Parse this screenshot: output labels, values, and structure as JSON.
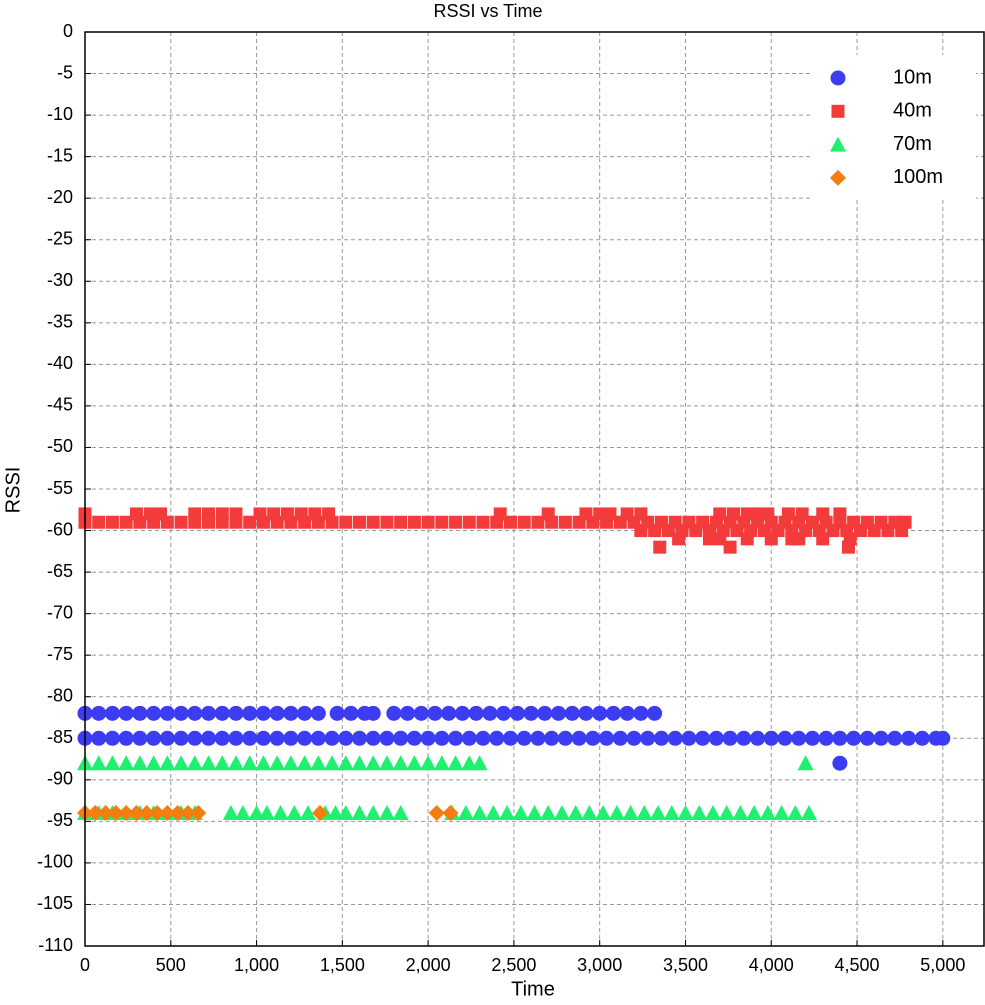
{
  "chart_data": {
    "type": "scatter",
    "title": "RSSI vs Time",
    "x_label": "Time",
    "y_label": "RSSI",
    "xlim": [
      0,
      5240
    ],
    "ylim": [
      -110,
      0
    ],
    "grid": true,
    "legend": "top-right",
    "xticks": [
      0,
      500,
      {
        "value": 1000,
        "label": "1,000"
      },
      {
        "value": 1500,
        "label": "1,500"
      },
      {
        "value": 2000,
        "label": "2,000"
      },
      {
        "value": 2500,
        "label": "2,500"
      },
      {
        "value": 3000,
        "label": "3,000"
      },
      {
        "value": 3500,
        "label": "3,500"
      },
      {
        "value": 4000,
        "label": "4,000"
      },
      {
        "value": 4500,
        "label": "4,500"
      },
      {
        "value": 5000,
        "label": "5,000"
      }
    ],
    "yticks": [
      0,
      -5,
      -10,
      -15,
      -20,
      -25,
      -30,
      -35,
      -40,
      -45,
      -50,
      -55,
      -60,
      -65,
      -70,
      -75,
      -80,
      -85,
      -90,
      -95,
      -100,
      -105,
      -110
    ],
    "series": [
      {
        "name": "10m",
        "color": "#3c3cf2",
        "marker": "circle",
        "x": [
          0,
          80,
          160,
          240,
          320,
          400,
          480,
          560,
          640,
          720,
          800,
          880,
          960,
          1040,
          1120,
          1200,
          1280,
          1360,
          1470,
          1550,
          1630,
          1680,
          1800,
          1880,
          1960,
          2040,
          2120,
          2200,
          2280,
          2360,
          2440,
          2520,
          2600,
          2680,
          2760,
          2840,
          2920,
          3000,
          3080,
          3160,
          3240,
          3320,
          0,
          80,
          160,
          240,
          320,
          400,
          480,
          560,
          640,
          720,
          800,
          880,
          960,
          1040,
          1120,
          1200,
          1280,
          1360,
          1440,
          1520,
          1600,
          1680,
          1760,
          1840,
          1920,
          2000,
          2080,
          2160,
          2240,
          2320,
          2400,
          2480,
          2560,
          2640,
          2720,
          2800,
          2880,
          2960,
          3040,
          3120,
          3200,
          3280,
          3360,
          3440,
          3520,
          3600,
          3680,
          3760,
          3840,
          3920,
          4000,
          4080,
          4160,
          4240,
          4320,
          4400,
          4480,
          4560,
          4640,
          4720,
          4800,
          4880,
          4960,
          5000,
          4400
        ],
        "values": [
          -82,
          -82,
          -82,
          -82,
          -82,
          -82,
          -82,
          -82,
          -82,
          -82,
          -82,
          -82,
          -82,
          -82,
          -82,
          -82,
          -82,
          -82,
          -82,
          -82,
          -82,
          -82,
          -82,
          -82,
          -82,
          -82,
          -82,
          -82,
          -82,
          -82,
          -82,
          -82,
          -82,
          -82,
          -82,
          -82,
          -82,
          -82,
          -82,
          -82,
          -82,
          -82,
          -85,
          -85,
          -85,
          -85,
          -85,
          -85,
          -85,
          -85,
          -85,
          -85,
          -85,
          -85,
          -85,
          -85,
          -85,
          -85,
          -85,
          -85,
          -85,
          -85,
          -85,
          -85,
          -85,
          -85,
          -85,
          -85,
          -85,
          -85,
          -85,
          -85,
          -85,
          -85,
          -85,
          -85,
          -85,
          -85,
          -85,
          -85,
          -85,
          -85,
          -85,
          -85,
          -85,
          -85,
          -85,
          -85,
          -85,
          -85,
          -85,
          -85,
          -85,
          -85,
          -85,
          -85,
          -85,
          -85,
          -85,
          -85,
          -85,
          -85,
          -85,
          -85,
          -85,
          -85,
          -88
        ]
      },
      {
        "name": "40m",
        "color": "#f33b3b",
        "marker": "square",
        "x": [
          0,
          80,
          160,
          240,
          320,
          400,
          480,
          560,
          640,
          720,
          800,
          880,
          960,
          1040,
          1120,
          1200,
          1280,
          1360,
          1440,
          1520,
          1600,
          1680,
          1760,
          1840,
          1920,
          2000,
          2080,
          2160,
          2240,
          2320,
          2400,
          2480,
          2560,
          2640,
          2720,
          2800,
          2880,
          2960,
          3040,
          3120,
          3200,
          3280,
          3360,
          3440,
          3520,
          3600,
          3680,
          3760,
          3840,
          3920,
          4000,
          4080,
          4160,
          4240,
          4320,
          4400,
          4480,
          4560,
          4640,
          4720,
          4780,
          0,
          300,
          380,
          440,
          640,
          720,
          800,
          880,
          1020,
          1100,
          1180,
          1260,
          1340,
          1420,
          2420,
          2700,
          2920,
          3000,
          3060,
          3160,
          3240,
          3700,
          3780,
          3860,
          3920,
          3980,
          4100,
          4180,
          4300,
          4400,
          3240,
          3320,
          3400,
          3480,
          3560,
          3640,
          3720,
          3800,
          3880,
          3960,
          4040,
          4120,
          4200,
          4280,
          4360,
          4440,
          4520,
          4600,
          4680,
          4760,
          3460,
          3640,
          3700,
          3860,
          4000,
          4120,
          4160,
          4300,
          4460,
          3350,
          3760,
          4450
        ],
        "values": [
          -59,
          -59,
          -59,
          -59,
          -59,
          -59,
          -59,
          -59,
          -59,
          -59,
          -59,
          -59,
          -59,
          -59,
          -59,
          -59,
          -59,
          -59,
          -59,
          -59,
          -59,
          -59,
          -59,
          -59,
          -59,
          -59,
          -59,
          -59,
          -59,
          -59,
          -59,
          -59,
          -59,
          -59,
          -59,
          -59,
          -59,
          -59,
          -59,
          -59,
          -59,
          -59,
          -59,
          -59,
          -59,
          -59,
          -59,
          -59,
          -59,
          -59,
          -59,
          -59,
          -59,
          -59,
          -59,
          -59,
          -59,
          -59,
          -59,
          -59,
          -59,
          -58,
          -58,
          -58,
          -58,
          -58,
          -58,
          -58,
          -58,
          -58,
          -58,
          -58,
          -58,
          -58,
          -58,
          -58,
          -58,
          -58,
          -58,
          -58,
          -58,
          -58,
          -58,
          -58,
          -58,
          -58,
          -58,
          -58,
          -58,
          -58,
          -58,
          -60,
          -60,
          -60,
          -60,
          -60,
          -60,
          -60,
          -60,
          -60,
          -60,
          -60,
          -60,
          -60,
          -60,
          -60,
          -60,
          -60,
          -60,
          -60,
          -60,
          -61,
          -61,
          -61,
          -61,
          -61,
          -61,
          -61,
          -61,
          -61,
          -62,
          -62,
          -62
        ]
      },
      {
        "name": "70m",
        "color": "#1ef070",
        "marker": "triangle",
        "x": [
          0,
          80,
          160,
          240,
          320,
          400,
          480,
          560,
          640,
          720,
          800,
          880,
          960,
          1040,
          1120,
          1200,
          1280,
          1360,
          1440,
          1520,
          1600,
          1680,
          1760,
          1840,
          1920,
          2000,
          2080,
          2160,
          2240,
          2300,
          4200,
          0,
          80,
          160,
          240,
          320,
          400,
          480,
          560,
          640,
          850,
          920,
          1000,
          1060,
          1140,
          1220,
          1300,
          1400,
          1460,
          1520,
          1600,
          1680,
          1760,
          1840,
          2140,
          2220,
          2300,
          2380,
          2460,
          2540,
          2620,
          2700,
          2780,
          2860,
          2940,
          3020,
          3100,
          3180,
          3260,
          3340,
          3420,
          3500,
          3580,
          3660,
          3740,
          3820,
          3900,
          3980,
          4060,
          4140,
          4220
        ],
        "values": [
          -88,
          -88,
          -88,
          -88,
          -88,
          -88,
          -88,
          -88,
          -88,
          -88,
          -88,
          -88,
          -88,
          -88,
          -88,
          -88,
          -88,
          -88,
          -88,
          -88,
          -88,
          -88,
          -88,
          -88,
          -88,
          -88,
          -88,
          -88,
          -88,
          -88,
          -88,
          -94,
          -94,
          -94,
          -94,
          -94,
          -94,
          -94,
          -94,
          -94,
          -94,
          -94,
          -94,
          -94,
          -94,
          -94,
          -94,
          -94,
          -94,
          -94,
          -94,
          -94,
          -94,
          -94,
          -94,
          -94,
          -94,
          -94,
          -94,
          -94,
          -94,
          -94,
          -94,
          -94,
          -94,
          -94,
          -94,
          -94,
          -94,
          -94,
          -94,
          -94,
          -94,
          -94,
          -94,
          -94,
          -94,
          -94,
          -94,
          -94,
          -94
        ]
      },
      {
        "name": "100m",
        "color": "#f57d10",
        "marker": "diamond",
        "x": [
          0,
          60,
          120,
          180,
          240,
          300,
          360,
          420,
          480,
          540,
          600,
          660,
          1370,
          2050,
          2130
        ],
        "values": [
          -94,
          -94,
          -94,
          -94,
          -94,
          -94,
          -94,
          -94,
          -94,
          -94,
          -94,
          -94,
          -94,
          -94,
          -94
        ]
      }
    ]
  }
}
